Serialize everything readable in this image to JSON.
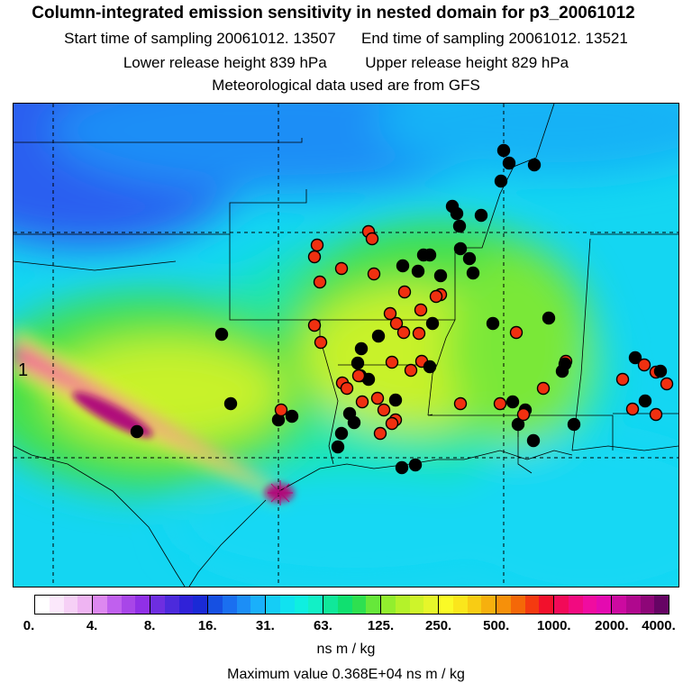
{
  "title": "Column-integrated emission sensitivity in nested domain for p3_20061012",
  "start_label": "Start time of sampling 20061012. 13507",
  "end_label": "End time of sampling 20061012. 13521",
  "lower_label": "Lower release height  839 hPa",
  "upper_label": "Upper release height  829 hPa",
  "met_label": "Meteorological data used are from GFS",
  "release_marker": "1",
  "colorbar": {
    "ticks": [
      "0.",
      "4.",
      "8.",
      "16.",
      "31.",
      "63.",
      "125.",
      "250.",
      "500.",
      "1000.",
      "2000.",
      "4000."
    ],
    "units": "ns m / kg",
    "segments": [
      [
        "#ffffff",
        "#fbe8fb",
        "#f6d0f6",
        "#efb4f2"
      ],
      [
        "#dd88f0",
        "#c060ee",
        "#a846e8",
        "#9030e6"
      ],
      [
        "#6e2ee0",
        "#4c2adc",
        "#3022d8",
        "#1a2ad6"
      ],
      [
        "#1650e2",
        "#1a6ff0",
        "#1c8ef6",
        "#1ab0fa"
      ],
      [
        "#15cdf6",
        "#10e2f0",
        "#0fefe0",
        "#12f0c6"
      ],
      [
        "#10e89a",
        "#10e070",
        "#2ee050",
        "#66e83a"
      ],
      [
        "#92ee2e",
        "#b4f22a",
        "#cef42a",
        "#e6f62a"
      ],
      [
        "#fafa26",
        "#fae61c",
        "#f8cc14",
        "#f6b00e"
      ],
      [
        "#f6900a",
        "#f46808",
        "#f43a10",
        "#f2102c"
      ],
      [
        "#f20a58",
        "#f20a80",
        "#f00ca0",
        "#e40ab0"
      ],
      [
        "#cc0aa0",
        "#b0088e",
        "#8e0678",
        "#660464"
      ]
    ]
  },
  "max_value_label": "Maximum value  0.368E+04 ns m / kg",
  "map_colors": {
    "low": "#2a5ff0",
    "mid_low": "#12d8f4",
    "mid": "#16e6b4",
    "green": "#44e048",
    "yellow_green": "#c8f22c",
    "yellow": "#f8f62a",
    "magenta": "#f00aa0",
    "dark_magenta": "#b0087a",
    "black_dot": "#000000",
    "red_dot": "#f03010"
  }
}
